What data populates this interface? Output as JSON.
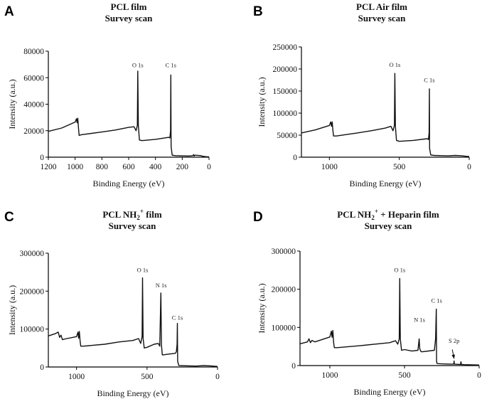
{
  "chart_data": [
    {
      "panel": "A",
      "type": "line",
      "title_lines": [
        "PCL film",
        "Survey scan"
      ],
      "xlabel": "Binding Energy (eV)",
      "ylabel": "Intensity (a.u.)",
      "xlim": [
        1200,
        0
      ],
      "ylim": [
        0,
        80000
      ],
      "x_ticks": [
        "1200",
        "1000",
        "800",
        "600",
        "400",
        "200",
        "0"
      ],
      "y_ticks": [
        "0",
        "20000",
        "40000",
        "60000",
        "80000"
      ],
      "annotations": [
        {
          "text": "O 1s",
          "x": 532,
          "y": 68000
        },
        {
          "text": "C 1s",
          "x": 285,
          "y": 68000
        }
      ],
      "series": [
        {
          "name": "PCL film",
          "x": [
            1200,
            1100,
            1000,
            990,
            985,
            980,
            975,
            970,
            950,
            800,
            700,
            600,
            560,
            545,
            535,
            532,
            528,
            520,
            500,
            400,
            300,
            292,
            287,
            285,
            283,
            275,
            250,
            200,
            150,
            120,
            115,
            110,
            105,
            60,
            50,
            20,
            0
          ],
          "y": [
            19500,
            22000,
            26500,
            29000,
            26000,
            29500,
            22000,
            16500,
            17000,
            19000,
            20500,
            22500,
            23000,
            20000,
            24000,
            65000,
            24000,
            13000,
            12500,
            13500,
            15000,
            14500,
            20000,
            62000,
            8000,
            1500,
            1200,
            1000,
            900,
            1200,
            2000,
            900,
            1500,
            1200,
            700,
            400,
            300
          ]
        }
      ]
    },
    {
      "panel": "B",
      "type": "line",
      "title_lines": [
        "PCL Air film",
        "Survey scan"
      ],
      "xlabel": "Binding Energy (eV)",
      "ylabel": "Intensity (a.u.)",
      "xlim": [
        1200,
        0
      ],
      "ylim": [
        0,
        250000
      ],
      "x_ticks": [
        "1000",
        "500",
        "0"
      ],
      "y_ticks": [
        "0",
        "50000",
        "100000",
        "150000",
        "200000",
        "250000"
      ],
      "annotations": [
        {
          "text": "O 1s",
          "x": 532,
          "y": 205000
        },
        {
          "text": "C 1s",
          "x": 285,
          "y": 170000
        }
      ],
      "series": [
        {
          "name": "PCL Air film",
          "x": [
            1200,
            1100,
            1000,
            990,
            985,
            980,
            975,
            970,
            950,
            800,
            700,
            600,
            560,
            545,
            535,
            532,
            528,
            520,
            500,
            400,
            300,
            292,
            287,
            285,
            283,
            275,
            250,
            200,
            150,
            100,
            50,
            20,
            0
          ],
          "y": [
            55000,
            62000,
            72000,
            80000,
            70000,
            80000,
            60000,
            48000,
            48000,
            55000,
            60000,
            66000,
            70000,
            60000,
            72000,
            190000,
            70000,
            38000,
            36000,
            38000,
            42000,
            40000,
            55000,
            155000,
            20000,
            5000,
            4000,
            3500,
            3000,
            4000,
            3000,
            2000,
            1500
          ]
        }
      ]
    },
    {
      "panel": "C",
      "type": "line",
      "title_lines": [
        "PCL NH2+ film",
        "Survey scan"
      ],
      "xlabel": "Binding Energy (eV)",
      "ylabel": "Intensity (a.u.)",
      "xlim": [
        1200,
        0
      ],
      "ylim": [
        0,
        300000
      ],
      "x_ticks": [
        "1000",
        "500",
        "0"
      ],
      "y_ticks": [
        "0",
        "100000",
        "200000",
        "300000"
      ],
      "annotations": [
        {
          "text": "O 1s",
          "x": 532,
          "y": 250000
        },
        {
          "text": "N 1s",
          "x": 400,
          "y": 210000
        },
        {
          "text": "C 1s",
          "x": 285,
          "y": 125000
        }
      ],
      "series": [
        {
          "name": "PCL NH2+ film",
          "x": [
            1200,
            1150,
            1130,
            1120,
            1110,
            1100,
            1080,
            1000,
            990,
            985,
            980,
            975,
            970,
            950,
            800,
            700,
            600,
            560,
            545,
            535,
            532,
            528,
            520,
            500,
            450,
            420,
            410,
            402,
            398,
            392,
            385,
            350,
            300,
            292,
            287,
            285,
            283,
            275,
            250,
            200,
            150,
            100,
            50,
            20,
            0
          ],
          "y": [
            82000,
            88000,
            92000,
            78000,
            84000,
            72000,
            74000,
            80000,
            92000,
            76000,
            94000,
            70000,
            55000,
            55000,
            60000,
            66000,
            70000,
            75000,
            62000,
            80000,
            235000,
            75000,
            50000,
            52000,
            60000,
            62000,
            55000,
            195000,
            58000,
            32000,
            32000,
            34000,
            36000,
            40000,
            60000,
            115000,
            15000,
            4000,
            3500,
            3000,
            2500,
            4000,
            3000,
            2000,
            1500
          ]
        }
      ]
    },
    {
      "panel": "D",
      "type": "line",
      "title_lines": [
        "PCL NH2+ + Heparin film",
        "Survey scan"
      ],
      "xlabel": "Binding Energy (eV)",
      "ylabel": "Intensity (a.u.)",
      "xlim": [
        1200,
        0
      ],
      "ylim": [
        0,
        300000
      ],
      "x_ticks": [
        "1000",
        "500",
        "0"
      ],
      "y_ticks": [
        "0",
        "100000",
        "200000",
        "300000"
      ],
      "annotations": [
        {
          "text": "O 1s",
          "x": 532,
          "y": 245000
        },
        {
          "text": "N 1s",
          "x": 400,
          "y": 115000
        },
        {
          "text": "C 1s",
          "x": 285,
          "y": 165000
        },
        {
          "text": "S 2p",
          "x": 168,
          "y": 60000
        }
      ],
      "arrow": {
        "from_x": 180,
        "from_y": 42000,
        "to_x": 168,
        "to_y": 18000
      },
      "series": [
        {
          "name": "PCL NH2+ + Heparin film",
          "x": [
            1200,
            1150,
            1140,
            1130,
            1120,
            1100,
            1000,
            990,
            985,
            980,
            975,
            970,
            950,
            800,
            700,
            600,
            560,
            545,
            535,
            532,
            528,
            520,
            500,
            450,
            410,
            402,
            398,
            392,
            385,
            300,
            292,
            287,
            285,
            283,
            275,
            250,
            200,
            170,
            168,
            166,
            160,
            140,
            125,
            122,
            119,
            100,
            50,
            0
          ],
          "y": [
            57000,
            62000,
            70000,
            60000,
            66000,
            62000,
            75000,
            90000,
            74000,
            92000,
            60000,
            47000,
            47000,
            52000,
            56000,
            60000,
            65000,
            56000,
            70000,
            228000,
            70000,
            40000,
            42000,
            38000,
            40000,
            70000,
            45000,
            38000,
            36000,
            40000,
            70000,
            148000,
            12000,
            6000,
            5000,
            4500,
            4000,
            4000,
            12000,
            4000,
            3500,
            3200,
            3000,
            10000,
            3000,
            2500,
            2000,
            1500
          ]
        }
      ]
    }
  ]
}
